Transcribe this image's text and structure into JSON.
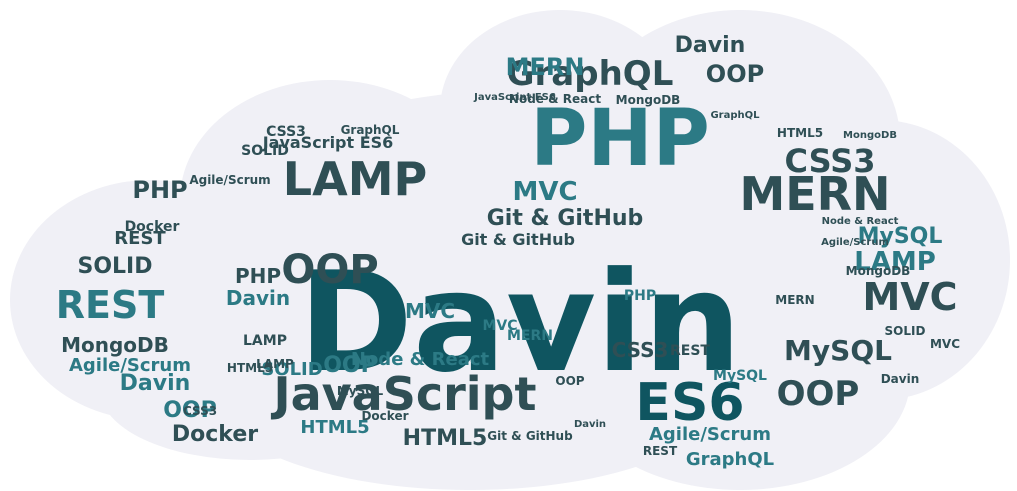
{
  "palette": {
    "background": "#ffffff",
    "cloud": "#f0f0f6",
    "teal_dark": "#0f5560",
    "teal": "#2c7a85",
    "teal_mid": "#3e8b94",
    "teal_light": "#4e9aa2",
    "slate": "#2f4f55"
  },
  "words": [
    {
      "text": "Davin",
      "size": 138,
      "color": "teal_dark"
    },
    {
      "text": "PHP",
      "size": 78,
      "color": "teal"
    },
    {
      "text": "JavaScript",
      "size": 46,
      "color": "slate"
    },
    {
      "text": "ES6",
      "size": 52,
      "color": "teal_dark"
    },
    {
      "text": "LAMP",
      "size": 46,
      "color": "slate"
    },
    {
      "text": "MERN",
      "size": 46,
      "color": "slate"
    },
    {
      "text": "GraphQL",
      "size": 34,
      "color": "slate"
    },
    {
      "text": "REST",
      "size": 38,
      "color": "teal"
    },
    {
      "text": "MVC",
      "size": 38,
      "color": "slate"
    },
    {
      "text": "OOP",
      "size": 34,
      "color": "slate"
    },
    {
      "text": "CSS3",
      "size": 32,
      "color": "slate"
    },
    {
      "text": "MySQL",
      "size": 28,
      "color": "slate"
    },
    {
      "text": "MERN",
      "size": 24,
      "color": "teal"
    },
    {
      "text": "OOP",
      "size": 24,
      "color": "slate"
    },
    {
      "text": "Davin",
      "size": 22,
      "color": "slate"
    },
    {
      "text": "MVC",
      "size": 26,
      "color": "teal"
    },
    {
      "text": "Git & GitHub",
      "size": 22,
      "color": "slate"
    },
    {
      "text": "PHP",
      "size": 24,
      "color": "slate"
    },
    {
      "text": "SOLID",
      "size": 22,
      "color": "slate"
    },
    {
      "text": "MongoDB",
      "size": 20,
      "color": "slate"
    },
    {
      "text": "Agile/Scrum",
      "size": 18,
      "color": "teal"
    },
    {
      "text": "Davin",
      "size": 22,
      "color": "teal"
    },
    {
      "text": "OOP",
      "size": 22,
      "color": "teal"
    },
    {
      "text": "Docker",
      "size": 22,
      "color": "slate"
    },
    {
      "text": "HTML5",
      "size": 22,
      "color": "slate"
    },
    {
      "text": "Node & React",
      "size": 18,
      "color": "teal"
    },
    {
      "text": "HTML5",
      "size": 18,
      "color": "teal"
    },
    {
      "text": "Agile/Scrum",
      "size": 18,
      "color": "teal"
    },
    {
      "text": "GraphQL",
      "size": 18,
      "color": "teal"
    },
    {
      "text": "OOP",
      "size": 40,
      "color": "slate"
    },
    {
      "text": "LAMP",
      "size": 26,
      "color": "teal"
    },
    {
      "text": "MySQL",
      "size": 22,
      "color": "teal"
    },
    {
      "text": "Davin",
      "size": 20,
      "color": "teal"
    },
    {
      "text": "OOP",
      "size": 22,
      "color": "teal"
    },
    {
      "text": "MVC",
      "size": 20,
      "color": "teal"
    },
    {
      "text": "CSS3",
      "size": 20,
      "color": "slate"
    },
    {
      "text": "SOLID",
      "size": 18,
      "color": "teal"
    },
    {
      "text": "REST",
      "size": 18,
      "color": "slate"
    },
    {
      "text": "PHP",
      "size": 20,
      "color": "slate"
    },
    {
      "text": "Git & GitHub",
      "size": 16,
      "color": "slate"
    },
    {
      "text": "JavaScript ES6",
      "size": 16,
      "color": "slate"
    },
    {
      "text": "Docker",
      "size": 14,
      "color": "slate"
    },
    {
      "text": "CSS3",
      "size": 14,
      "color": "slate"
    },
    {
      "text": "SOLID",
      "size": 14,
      "color": "slate"
    },
    {
      "text": "MySQL",
      "size": 14,
      "color": "teal"
    },
    {
      "text": "MongoDB",
      "size": 12,
      "color": "slate"
    },
    {
      "text": "Node & React",
      "size": 12,
      "color": "slate"
    },
    {
      "text": "MVC",
      "size": 14,
      "color": "teal"
    },
    {
      "text": "REST",
      "size": 14,
      "color": "slate"
    },
    {
      "text": "MERN",
      "size": 14,
      "color": "teal"
    },
    {
      "text": "Agile/Scrum",
      "size": 12,
      "color": "slate"
    },
    {
      "text": "HTML5",
      "size": 12,
      "color": "slate"
    },
    {
      "text": "MongoDB",
      "size": 12,
      "color": "slate"
    },
    {
      "text": "GraphQL",
      "size": 12,
      "color": "slate"
    },
    {
      "text": "Davin",
      "size": 12,
      "color": "slate"
    },
    {
      "text": "LAMP",
      "size": 14,
      "color": "slate"
    },
    {
      "text": "PHP",
      "size": 14,
      "color": "teal"
    },
    {
      "text": "MERN",
      "size": 12,
      "color": "slate"
    },
    {
      "text": "OOP",
      "size": 12,
      "color": "slate"
    },
    {
      "text": "MySQL",
      "size": 12,
      "color": "slate"
    },
    {
      "text": "CSS3",
      "size": 12,
      "color": "slate"
    },
    {
      "text": "SOLID",
      "size": 12,
      "color": "slate"
    },
    {
      "text": "Docker",
      "size": 12,
      "color": "slate"
    },
    {
      "text": "REST",
      "size": 12,
      "color": "slate"
    },
    {
      "text": "MVC",
      "size": 12,
      "color": "slate"
    },
    {
      "text": "LAMP",
      "size": 12,
      "color": "slate"
    },
    {
      "text": "Git & GitHub",
      "size": 12,
      "color": "slate"
    },
    {
      "text": "HTML5",
      "size": 12,
      "color": "slate"
    },
    {
      "text": "JavaScript ES6",
      "size": 10,
      "color": "slate"
    },
    {
      "text": "Node & React",
      "size": 10,
      "color": "slate"
    },
    {
      "text": "Agile/Scrum",
      "size": 10,
      "color": "slate"
    },
    {
      "text": "MongoDB",
      "size": 10,
      "color": "slate"
    },
    {
      "text": "GraphQL",
      "size": 10,
      "color": "slate"
    },
    {
      "text": "Davin",
      "size": 10,
      "color": "slate"
    }
  ]
}
